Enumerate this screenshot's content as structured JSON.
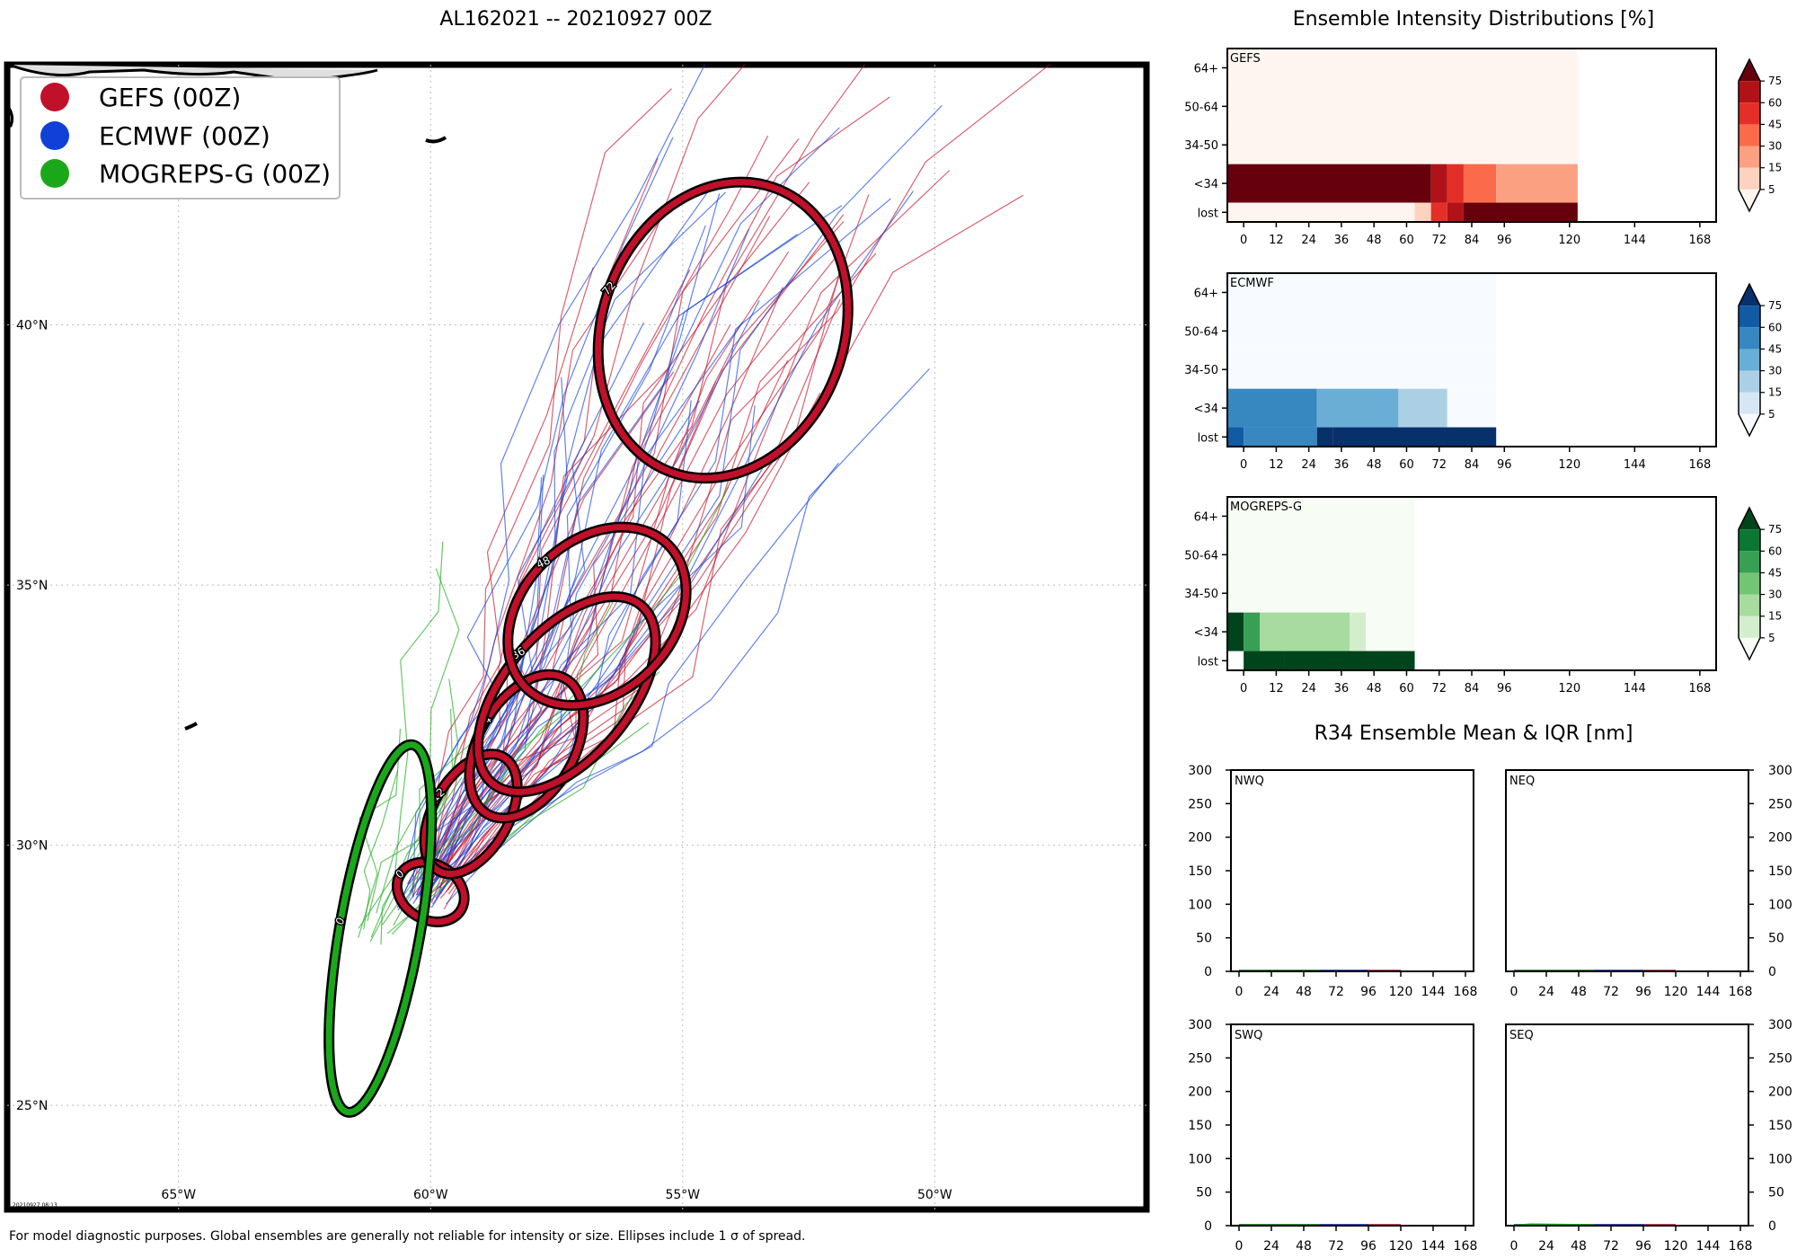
{
  "figure": {
    "title": "AL162021 -- 20210927 00Z",
    "footnote": "For model diagnostic purposes. Global ensembles are generally not reliable for intensity or size. Ellipses include 1 σ of spread.",
    "timestamp": "20210927 08:13"
  },
  "colors": {
    "gefs": "#c0102a",
    "ecmwf": "#1040d8",
    "mogreps": "#1aa81a"
  },
  "chart_data": [
    {
      "type": "scatter",
      "name": "track-map",
      "title": "AL162021 -- 20210927 00Z",
      "xlabel": "",
      "ylabel": "",
      "xlim": [
        -68.4,
        -45.8
      ],
      "ylim": [
        23.0,
        45.0
      ],
      "grid": true,
      "xticks": [
        -65,
        -60,
        -55,
        -50
      ],
      "xtick_labels": [
        "65°W",
        "60°W",
        "55°W",
        "50°W"
      ],
      "yticks": [
        25,
        30,
        35,
        40
      ],
      "ytick_labels": [
        "25°N",
        "30°N",
        "35°N",
        "40°N"
      ],
      "legend": {
        "location": "top-left",
        "entries": [
          {
            "label": "GEFS (00Z)",
            "color": "#c0102a"
          },
          {
            "label": "ECMWF (00Z)",
            "color": "#1040d8"
          },
          {
            "label": "MOGREPS-G (00Z)",
            "color": "#1aa81a"
          }
        ]
      },
      "ellipses": [
        {
          "model": "GEFS",
          "label": "0",
          "lon": -60.0,
          "lat": 29.1,
          "width_deg": 0.7,
          "height_deg": 0.55,
          "angle": 30
        },
        {
          "model": "GEFS",
          "label": "12",
          "lon": -59.2,
          "lat": 30.6,
          "width_deg": 0.75,
          "height_deg": 1.3,
          "angle": 30
        },
        {
          "model": "GEFS",
          "label": "24",
          "lon": -58.1,
          "lat": 31.9,
          "width_deg": 0.95,
          "height_deg": 1.55,
          "angle": 30
        },
        {
          "model": "GEFS",
          "label": "36",
          "lon": -57.3,
          "lat": 32.9,
          "width_deg": 1.25,
          "height_deg": 2.3,
          "angle": 40
        },
        {
          "model": "GEFS",
          "label": "48",
          "lon": -56.7,
          "lat": 34.4,
          "width_deg": 1.5,
          "height_deg": 2.0,
          "angle": 45
        },
        {
          "model": "GEFS",
          "label": "72",
          "lon": -54.2,
          "lat": 39.9,
          "width_deg": 2.4,
          "height_deg": 3.0,
          "angle": 20
        },
        {
          "model": "MOGREPS-G",
          "label": "0",
          "lon": -61.0,
          "lat": 28.4,
          "width_deg": 0.8,
          "height_deg": 3.7,
          "angle": 10
        }
      ],
      "track_mean": {
        "GEFS": [
          [
            -60.0,
            29.1
          ],
          [
            -59.2,
            30.6
          ],
          [
            -58.1,
            31.9
          ],
          [
            -57.3,
            32.9
          ],
          [
            -56.7,
            34.4
          ],
          [
            -55.4,
            37.3
          ],
          [
            -54.2,
            39.9
          ],
          [
            -52.6,
            42.6
          ],
          [
            -50.8,
            44.4
          ]
        ],
        "ECMWF": [
          [
            -60.2,
            29.0
          ],
          [
            -59.3,
            30.4
          ],
          [
            -58.3,
            31.7
          ],
          [
            -57.5,
            32.8
          ],
          [
            -56.9,
            34.0
          ],
          [
            -56.0,
            36.0
          ],
          [
            -55.0,
            38.4
          ],
          [
            -53.4,
            41.2
          ],
          [
            -51.2,
            43.4
          ]
        ],
        "MOGREPS-G": [
          [
            -61.0,
            28.4
          ],
          [
            -60.4,
            29.4
          ],
          [
            -59.7,
            30.3
          ],
          [
            -59.1,
            31.3
          ],
          [
            -58.5,
            32.5
          ],
          [
            -58.0,
            33.6
          ],
          [
            -57.6,
            34.9
          ]
        ]
      }
    },
    {
      "type": "heatmap",
      "name": "gefs-intensity",
      "label": "GEFS",
      "cmap": "Reds",
      "xlim": [
        -6,
        174
      ],
      "xticks": [
        0,
        12,
        24,
        36,
        48,
        60,
        72,
        84,
        96,
        120,
        144,
        168
      ],
      "rows": [
        "64+",
        "50-64",
        "34-50",
        "<34",
        "lost"
      ],
      "colorbar_ticks": [
        "5",
        "15",
        "30",
        "45",
        "60",
        "75"
      ],
      "cells": [
        {
          "row": "64+",
          "t0": -6,
          "t1": 123,
          "pct": 2
        },
        {
          "row": "50-64",
          "t0": -6,
          "t1": 123,
          "pct": 2
        },
        {
          "row": "34-50",
          "t0": -6,
          "t1": 123,
          "pct": 2
        },
        {
          "row": "<34",
          "t0": -6,
          "t1": 69,
          "pct": 100
        },
        {
          "row": "<34",
          "t0": 69,
          "t1": 75,
          "pct": 70
        },
        {
          "row": "<34",
          "t0": 75,
          "t1": 81,
          "pct": 45
        },
        {
          "row": "<34",
          "t0": 81,
          "t1": 93,
          "pct": 35
        },
        {
          "row": "<34",
          "t0": 93,
          "t1": 123,
          "pct": 15
        },
        {
          "row": "lost",
          "t0": -6,
          "t1": 63,
          "pct": 2
        },
        {
          "row": "lost",
          "t0": 63,
          "t1": 69,
          "pct": 10
        },
        {
          "row": "lost",
          "t0": 69,
          "t1": 75,
          "pct": 45
        },
        {
          "row": "lost",
          "t0": 75,
          "t1": 81,
          "pct": 70
        },
        {
          "row": "lost",
          "t0": 81,
          "t1": 123,
          "pct": 90
        }
      ]
    },
    {
      "type": "heatmap",
      "name": "ecmwf-intensity",
      "label": "ECMWF",
      "cmap": "Blues",
      "xlim": [
        -6,
        174
      ],
      "xticks": [
        0,
        12,
        24,
        36,
        48,
        60,
        72,
        84,
        96,
        120,
        144,
        168
      ],
      "rows": [
        "64+",
        "50-64",
        "34-50",
        "<34",
        "lost"
      ],
      "colorbar_ticks": [
        "5",
        "15",
        "30",
        "45",
        "60",
        "75"
      ],
      "cells": [
        {
          "row": "64+",
          "t0": -6,
          "t1": 93,
          "pct": 2
        },
        {
          "row": "50-64",
          "t0": -6,
          "t1": 93,
          "pct": 2
        },
        {
          "row": "34-50",
          "t0": -6,
          "t1": 93,
          "pct": 2
        },
        {
          "row": "<34",
          "t0": -6,
          "t1": 27,
          "pct": 45
        },
        {
          "row": "<34",
          "t0": 27,
          "t1": 57,
          "pct": 30
        },
        {
          "row": "<34",
          "t0": 57,
          "t1": 75,
          "pct": 15
        },
        {
          "row": "<34",
          "t0": 75,
          "t1": 93,
          "pct": 2
        },
        {
          "row": "lost",
          "t0": -6,
          "t1": 0,
          "pct": 70
        },
        {
          "row": "lost",
          "t0": 0,
          "t1": 27,
          "pct": 55
        },
        {
          "row": "lost",
          "t0": 27,
          "t1": 33,
          "pct": 75
        },
        {
          "row": "lost",
          "t0": 33,
          "t1": 93,
          "pct": 100
        }
      ]
    },
    {
      "type": "heatmap",
      "name": "mogreps-intensity",
      "label": "MOGREPS-G",
      "cmap": "Greens",
      "xlim": [
        -6,
        174
      ],
      "xticks": [
        0,
        12,
        24,
        36,
        48,
        60,
        72,
        84,
        96,
        120,
        144,
        168
      ],
      "rows": [
        "64+",
        "50-64",
        "34-50",
        "<34",
        "lost"
      ],
      "colorbar_ticks": [
        "5",
        "15",
        "30",
        "45",
        "60",
        "75"
      ],
      "cells": [
        {
          "row": "64+",
          "t0": -6,
          "t1": 63,
          "pct": 2
        },
        {
          "row": "50-64",
          "t0": -6,
          "t1": 63,
          "pct": 2
        },
        {
          "row": "34-50",
          "t0": -6,
          "t1": 63,
          "pct": 2
        },
        {
          "row": "<34",
          "t0": -6,
          "t1": 0,
          "pct": 100
        },
        {
          "row": "<34",
          "t0": 0,
          "t1": 6,
          "pct": 50
        },
        {
          "row": "<34",
          "t0": 6,
          "t1": 39,
          "pct": 25
        },
        {
          "row": "<34",
          "t0": 39,
          "t1": 45,
          "pct": 10
        },
        {
          "row": "<34",
          "t0": 45,
          "t1": 63,
          "pct": 2
        },
        {
          "row": "lost",
          "t0": -6,
          "t1": 0,
          "pct": 0
        },
        {
          "row": "lost",
          "t0": 0,
          "t1": 15,
          "pct": 75
        },
        {
          "row": "lost",
          "t0": 15,
          "t1": 63,
          "pct": 100
        }
      ]
    },
    {
      "type": "line",
      "name": "r34-panels",
      "title": "R34 Ensemble Mean & IQR [nm]",
      "xlim": [
        -6,
        174
      ],
      "ylim": [
        0,
        300
      ],
      "xticks": [
        0,
        24,
        48,
        72,
        96,
        120,
        144,
        168
      ],
      "yticks": [
        0,
        50,
        100,
        150,
        200,
        250,
        300
      ],
      "panels": [
        {
          "label": "NWQ",
          "series": [
            {
              "name": "GEFS",
              "x": [
                0,
                120
              ],
              "y": [
                1,
                1
              ]
            },
            {
              "name": "ECMWF",
              "x": [
                0,
                96
              ],
              "y": [
                1,
                1
              ]
            },
            {
              "name": "MOGREPS-G",
              "x": [
                0,
                60
              ],
              "y": [
                1,
                1
              ]
            }
          ]
        },
        {
          "label": "NEQ",
          "series": [
            {
              "name": "GEFS",
              "x": [
                0,
                120
              ],
              "y": [
                1,
                1
              ]
            },
            {
              "name": "ECMWF",
              "x": [
                0,
                96
              ],
              "y": [
                1,
                1
              ]
            },
            {
              "name": "MOGREPS-G",
              "x": [
                0,
                60
              ],
              "y": [
                1,
                1
              ]
            }
          ]
        },
        {
          "label": "SWQ",
          "series": [
            {
              "name": "GEFS",
              "x": [
                0,
                120
              ],
              "y": [
                1,
                1
              ]
            },
            {
              "name": "ECMWF",
              "x": [
                0,
                96
              ],
              "y": [
                1,
                1
              ]
            },
            {
              "name": "MOGREPS-G",
              "x": [
                0,
                60
              ],
              "y": [
                1,
                1
              ]
            }
          ]
        },
        {
          "label": "SEQ",
          "series": [
            {
              "name": "GEFS",
              "x": [
                0,
                120
              ],
              "y": [
                1,
                1
              ]
            },
            {
              "name": "ECMWF",
              "x": [
                0,
                96
              ],
              "y": [
                1,
                1
              ]
            },
            {
              "name": "MOGREPS-G",
              "x": [
                0,
                60
              ],
              "y": [
                1,
                1,
                2,
                1
              ],
              "x_full": [
                0,
                6,
                12,
                60
              ]
            }
          ]
        }
      ]
    }
  ],
  "headings": {
    "intensity": "Ensemble Intensity Distributions [%]",
    "r34": "R34 Ensemble Mean & IQR [nm]"
  }
}
